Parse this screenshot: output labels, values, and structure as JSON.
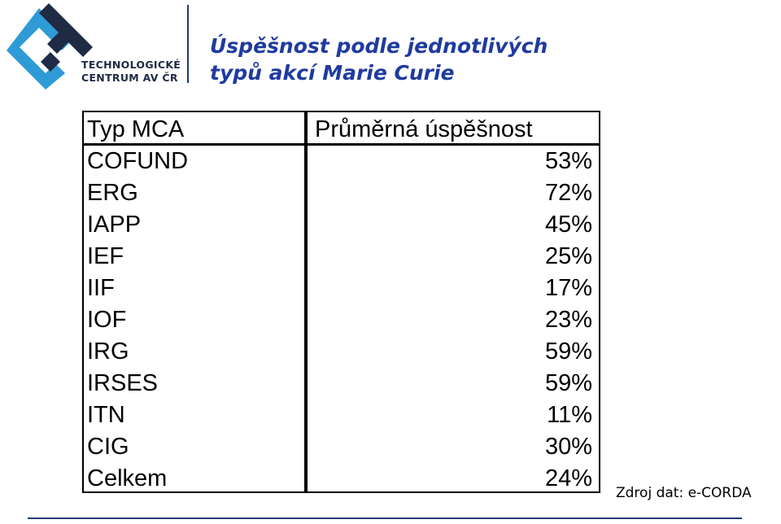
{
  "logo": {
    "line1": "TECHNOLOGICKÉ",
    "line2": "CENTRUM AV ČR",
    "mark_colors": {
      "light": "#2e9bd6",
      "dark": "#1f2a44"
    }
  },
  "title": {
    "line1": "Úspěšnost podle jednotlivých",
    "line2": "typů akcí Marie Curie"
  },
  "table": {
    "headers": [
      "Typ MCA",
      "Průměrná úspěšnost"
    ],
    "rows": [
      {
        "type": "COFUND",
        "value": "53%"
      },
      {
        "type": "ERG",
        "value": "72%"
      },
      {
        "type": "IAPP",
        "value": "45%"
      },
      {
        "type": "IEF",
        "value": "25%"
      },
      {
        "type": "IIF",
        "value": "17%"
      },
      {
        "type": "IOF",
        "value": "23%"
      },
      {
        "type": "IRG",
        "value": "59%"
      },
      {
        "type": "IRSES",
        "value": "59%"
      },
      {
        "type": "ITN",
        "value": "11%"
      },
      {
        "type": "CIG",
        "value": "30%"
      },
      {
        "type": "Celkem",
        "value": "24%"
      }
    ]
  },
  "source": "Zdroj dat: e-CORDA",
  "colors": {
    "title": "#1f3b9f",
    "rule": "#1f3b78"
  }
}
